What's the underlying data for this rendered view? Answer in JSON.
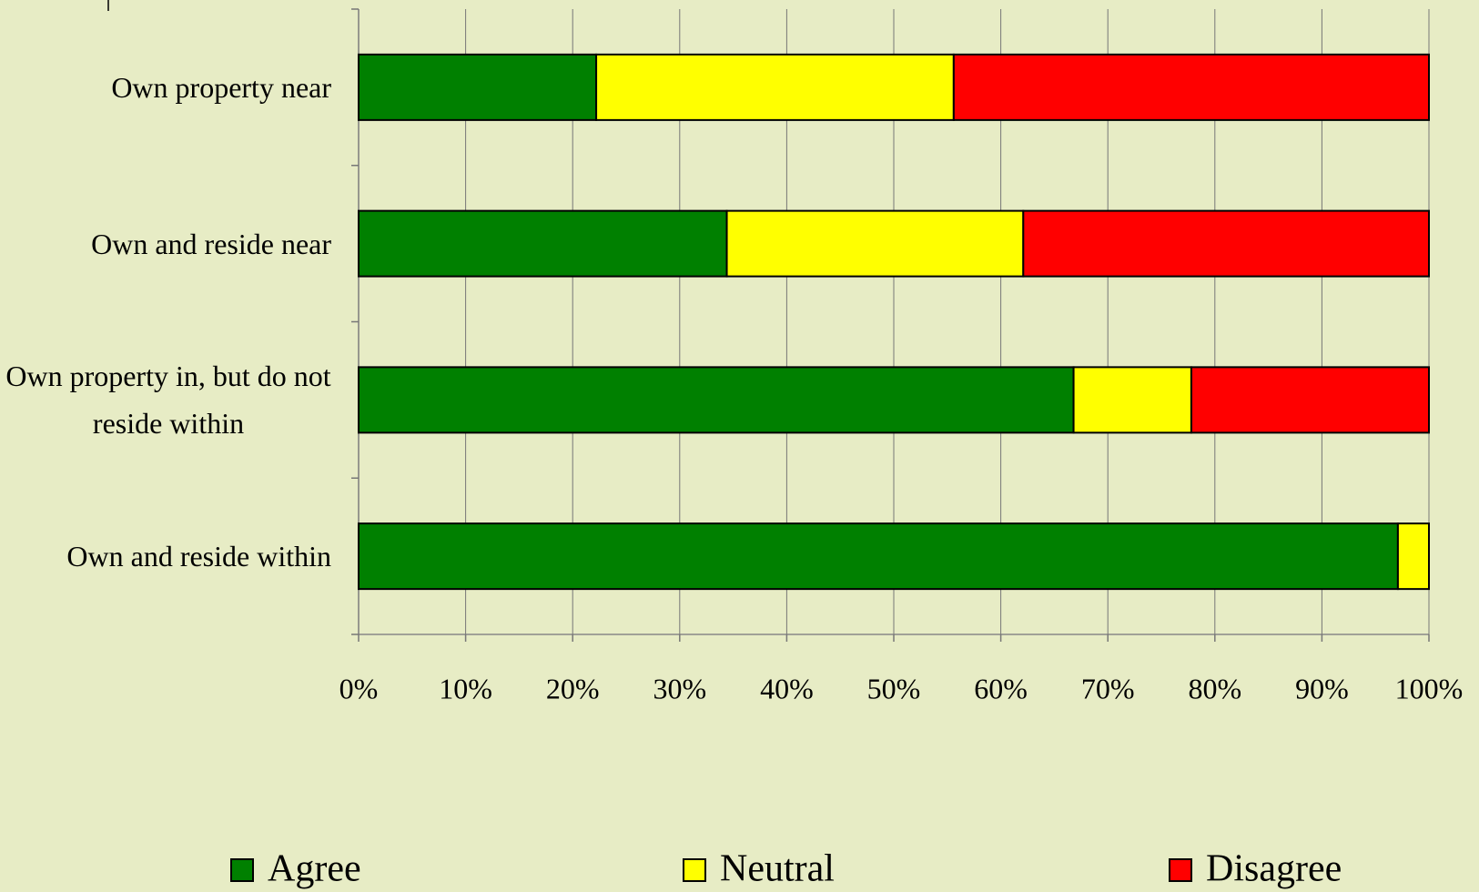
{
  "chart_data": {
    "type": "stacked-bar-horizontal",
    "categories": [
      "Own property near",
      "Own and reside near",
      "Own property in, but do not reside within",
      "Own and reside within"
    ],
    "series": [
      {
        "name": "Agree",
        "color": "#008000",
        "values": [
          22.2,
          34.4,
          66.8,
          97.1
        ]
      },
      {
        "name": "Neutral",
        "color": "#ffff00",
        "values": [
          33.4,
          27.7,
          11.0,
          2.9
        ]
      },
      {
        "name": "Disagree",
        "color": "#ff0000",
        "values": [
          44.4,
          37.9,
          22.2,
          0
        ]
      }
    ],
    "xlim": [
      0,
      100
    ],
    "xticks": [
      {
        "value": 0,
        "label": "0%"
      },
      {
        "value": 10,
        "label": "10%"
      },
      {
        "value": 20,
        "label": "20%"
      },
      {
        "value": 30,
        "label": "30%"
      },
      {
        "value": 40,
        "label": "40%"
      },
      {
        "value": 50,
        "label": "50%"
      },
      {
        "value": 60,
        "label": "60%"
      },
      {
        "value": 70,
        "label": "70%"
      },
      {
        "value": 80,
        "label": "80%"
      },
      {
        "value": 90,
        "label": "90%"
      },
      {
        "value": 100,
        "label": "100%"
      }
    ],
    "grid": true,
    "legend": "bottom"
  }
}
